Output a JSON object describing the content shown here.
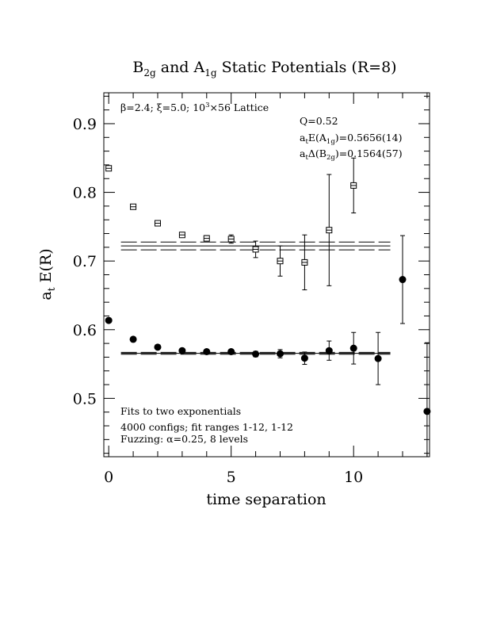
{
  "chart_data": {
    "type": "scatter",
    "title": {
      "base1": "B",
      "sub1": "2g",
      "mid": " and A",
      "sub2": "1g",
      "rest": " Static Potentials (R=8)"
    },
    "xlabel": "time separation",
    "ylabel": {
      "base": "a",
      "sub": "t",
      "rest": " E(R)"
    },
    "xlim": [
      -0.2,
      13.1
    ],
    "ylim": [
      0.415,
      0.945
    ],
    "x_ticks": [
      0,
      5,
      10
    ],
    "y_ticks": [
      0.5,
      0.6,
      0.7,
      0.8,
      0.9
    ],
    "x_tick_labels": [
      "0",
      "5",
      "10"
    ],
    "y_tick_labels": [
      "0.5",
      "0.6",
      "0.7",
      "0.8",
      "0.9"
    ],
    "annotations": {
      "lattice": {
        "beta": "β",
        "rest1": "=2.4; ",
        "xi": "ξ",
        "rest2": "=5.0; 10",
        "sup": "3",
        "rest3": "×56 Lattice"
      },
      "q": "Q=0.52",
      "energy_a1g": {
        "a": "a",
        "sub_t": "t",
        "e": "E(A",
        "sub": "1g",
        "rest": ")=0.5656(14)"
      },
      "gap_b2g": {
        "a": "a",
        "sub_t": "t",
        "d": "Δ(B",
        "sub": "2g",
        "rest": ")=0.1564(57)"
      },
      "fits": "Fits to two exponentials",
      "configs": "4000 configs; fit ranges 1-12, 1-12",
      "fuzzing": {
        "pre": "Fuzzing: ",
        "alpha": "α",
        "rest": "=0.25, 8 levels"
      }
    },
    "series": [
      {
        "name": "B2g",
        "marker": "open-square",
        "points": [
          {
            "x": 0,
            "y": 0.835,
            "err": 0.002
          },
          {
            "x": 1,
            "y": 0.779,
            "err": 0.002
          },
          {
            "x": 2,
            "y": 0.755,
            "err": 0.002
          },
          {
            "x": 3,
            "y": 0.738,
            "err": 0.003
          },
          {
            "x": 4,
            "y": 0.733,
            "err": 0.004
          },
          {
            "x": 5,
            "y": 0.732,
            "err": 0.006
          },
          {
            "x": 6,
            "y": 0.717,
            "err": 0.012
          },
          {
            "x": 7,
            "y": 0.7,
            "err": 0.022
          },
          {
            "x": 8,
            "y": 0.698,
            "err": 0.04
          },
          {
            "x": 9,
            "y": 0.745,
            "err": 0.081
          },
          {
            "x": 10,
            "y": 0.81,
            "err": 0.04
          }
        ],
        "fit": {
          "center": 0.722,
          "err": 0.0057,
          "x_from": 0.5,
          "x_to": 11.5
        }
      },
      {
        "name": "A1g",
        "marker": "filled-circle",
        "points": [
          {
            "x": 0,
            "y": 0.6135,
            "err": 0.002
          },
          {
            "x": 1,
            "y": 0.586,
            "err": 0.002
          },
          {
            "x": 2,
            "y": 0.5745,
            "err": 0.002
          },
          {
            "x": 3,
            "y": 0.5695,
            "err": 0.002
          },
          {
            "x": 4,
            "y": 0.568,
            "err": 0.003
          },
          {
            "x": 5,
            "y": 0.568,
            "err": 0.003
          },
          {
            "x": 6,
            "y": 0.5645,
            "err": 0.004
          },
          {
            "x": 7,
            "y": 0.565,
            "err": 0.006
          },
          {
            "x": 8,
            "y": 0.5585,
            "err": 0.009
          },
          {
            "x": 9,
            "y": 0.5695,
            "err": 0.014
          },
          {
            "x": 10,
            "y": 0.573,
            "err": 0.023
          },
          {
            "x": 11,
            "y": 0.558,
            "err": 0.038
          },
          {
            "x": 12,
            "y": 0.673,
            "err": 0.064
          },
          {
            "x": 13,
            "y": 0.481,
            "err": 0.1
          }
        ],
        "fit": {
          "center": 0.5656,
          "err": 0.0014,
          "x_from": 0.5,
          "x_to": 11.5
        }
      }
    ],
    "grid": false
  }
}
